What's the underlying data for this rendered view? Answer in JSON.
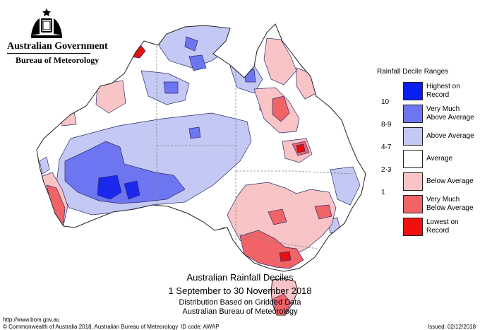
{
  "header": {
    "government": "Australian Government",
    "bureau": "Bureau of Meteorology"
  },
  "map": {
    "title": "Australian Rainfall Deciles",
    "period": "1 September to 30 November 2018",
    "note1": "Distribution Based on Gridded Data",
    "note2": "Australian Bureau of Meteorology"
  },
  "legend": {
    "title": "Rainfall Decile Ranges",
    "items": [
      {
        "rank": "",
        "label_lines": [
          "Highest on",
          "Record"
        ],
        "color": "#0a1ef0"
      },
      {
        "rank": "10",
        "label_lines": [
          "Very Much",
          "Above Average"
        ],
        "color": "#6d76f0"
      },
      {
        "rank": "8-9",
        "label_lines": [
          "Above Average"
        ],
        "color": "#c4c8f4"
      },
      {
        "rank": "4-7",
        "label_lines": [
          "Average"
        ],
        "color": "#ffffff"
      },
      {
        "rank": "2-3",
        "label_lines": [
          "Below Average"
        ],
        "color": "#f8c4c6"
      },
      {
        "rank": "1",
        "label_lines": [
          "Very Much",
          "Below Average"
        ],
        "color": "#f06468"
      },
      {
        "rank": "",
        "label_lines": [
          "Lowest on",
          "Record"
        ],
        "color": "#f01010"
      }
    ]
  },
  "footer": {
    "url": "http://www.bom.gov.au",
    "copyright": "© Commonwealth of Australia 2018, Australian Bureau of Meteorology",
    "id_code": "ID code: AWAP",
    "issued": "Issued: 02/12/2018"
  }
}
